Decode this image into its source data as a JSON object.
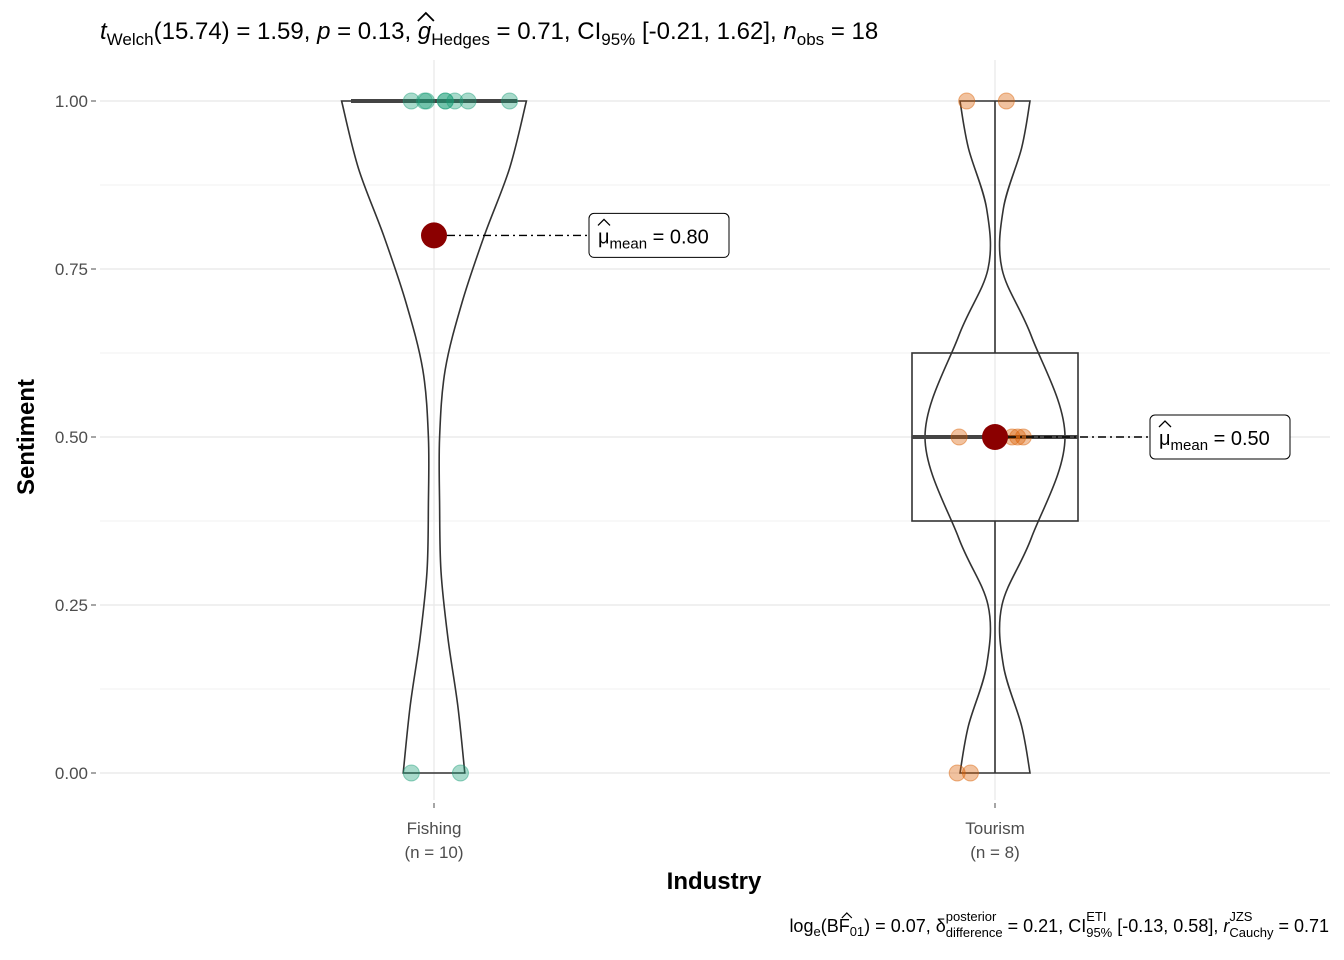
{
  "chart_data": {
    "type": "violin",
    "title": {
      "stat_symbol": "t",
      "stat_sub": "Welch",
      "df": "(15.74)",
      "stat_value": "1.59",
      "p_symbol": "p",
      "p_value": "0.13",
      "effect_symbol": "g",
      "effect_sub": "Hedges",
      "effect_value": "0.71",
      "ci_prefix": "CI",
      "ci_sub": "95%",
      "ci_value": "[-0.21, 1.62]",
      "n_symbol": "n",
      "n_sub": "obs",
      "n_value": "18"
    },
    "caption": {
      "log_prefix": "log",
      "log_sub": "e",
      "bf_open": "(BF",
      "bf_sub": "01",
      "bf_close": ")",
      "bf_value": "0.07",
      "delta_symbol": "δ",
      "delta_sup": "posterior",
      "delta_sub": "difference",
      "delta_value": "0.21",
      "ci_prefix": "CI",
      "ci_sup": "ETI",
      "ci_sub": "95%",
      "ci_value": "[-0.13, 0.58]",
      "r_symbol": "r",
      "r_sup": "JZS",
      "r_sub": "Cauchy",
      "r_value": "0.71"
    },
    "xlabel": "Industry",
    "ylabel": "Sentiment",
    "ylim": [
      0,
      1
    ],
    "y_ticks": [
      "0.00",
      "0.25",
      "0.50",
      "0.75",
      "1.00"
    ],
    "y_tick_values": [
      0,
      0.25,
      0.5,
      0.75,
      1
    ],
    "grid": true,
    "groups": [
      {
        "category": "Fishing",
        "n_label": "(n = 10)",
        "color": "#1b9e77",
        "values": [
          1,
          1,
          1,
          1,
          1,
          1,
          1,
          1,
          0,
          0
        ],
        "jitter": [
          -0.06,
          -0.02,
          -0.025,
          0.03,
          0.055,
          0.03,
          0.09,
          0.2,
          -0.06,
          0.07
        ],
        "mean": 0.8,
        "mean_label_symbol": "μ",
        "mean_label_sub": "mean",
        "mean_label_value": "0.80",
        "box": {
          "q1": 1,
          "median": 1,
          "q3": 1
        },
        "violin_density": [
          [
            0,
            0.11
          ],
          [
            0.1,
            0.085
          ],
          [
            0.2,
            0.05
          ],
          [
            0.3,
            0.025
          ],
          [
            0.4,
            0.02
          ],
          [
            0.5,
            0.02
          ],
          [
            0.6,
            0.04
          ],
          [
            0.7,
            0.1
          ],
          [
            0.8,
            0.18
          ],
          [
            0.9,
            0.27
          ],
          [
            1,
            0.33
          ]
        ]
      },
      {
        "category": "Tourism",
        "n_label": "(n = 8)",
        "color": "#d95f02",
        "values": [
          1,
          1,
          0.5,
          0.5,
          0.5,
          0.5,
          0,
          0
        ],
        "jitter": [
          -0.075,
          0.03,
          -0.095,
          0.06,
          0.075,
          0.045,
          -0.1,
          -0.065
        ],
        "mean": 0.5,
        "mean_label_symbol": "μ",
        "mean_label_sub": "mean",
        "mean_label_value": "0.50",
        "box": {
          "q1": 0.375,
          "median": 0.5,
          "q3": 0.625
        },
        "violin_density": [
          [
            0,
            0.125
          ],
          [
            0.07,
            0.095
          ],
          [
            0.16,
            0.03
          ],
          [
            0.25,
            0.025
          ],
          [
            0.35,
            0.13
          ],
          [
            0.5,
            0.25
          ],
          [
            0.65,
            0.13
          ],
          [
            0.75,
            0.025
          ],
          [
            0.84,
            0.03
          ],
          [
            0.93,
            0.095
          ],
          [
            1,
            0.125
          ]
        ]
      }
    ]
  }
}
